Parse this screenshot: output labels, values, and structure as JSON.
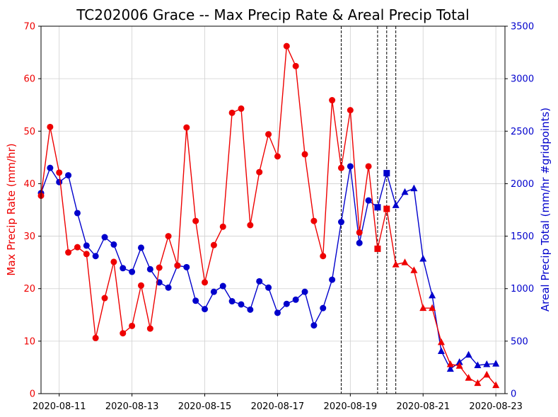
{
  "chart_data": {
    "type": "line",
    "title": "TC202006 Grace -- Max Precip Rate & Areal Precip Total",
    "xlabel": "",
    "ylabel_left": "Max Precip Rate (mm/hr)",
    "ylabel_right": "Areal Precip Total (mm/hr #gridpoints)",
    "xlim": [
      "2020-08-10 12:00",
      "2020-08-23 06:00"
    ],
    "ylim_left": [
      0,
      70
    ],
    "ylim_right": [
      0,
      3500
    ],
    "x_tick_labels": [
      "2020-08-11",
      "2020-08-13",
      "2020-08-15",
      "2020-08-17",
      "2020-08-19",
      "2020-08-21",
      "2020-08-23"
    ],
    "y_left_tick_labels": [
      "0",
      "10",
      "20",
      "30",
      "40",
      "50",
      "60",
      "70"
    ],
    "y_right_tick_labels": [
      "0",
      "500",
      "1000",
      "1500",
      "2000",
      "2500",
      "3000",
      "3500"
    ],
    "grid": true,
    "colors": {
      "left_series": "#ee0000",
      "right_series": "#0000cc",
      "vlines": "#000000"
    },
    "vlines": [
      "2020-08-18 18:00",
      "2020-08-19 18:00",
      "2020-08-20 00:00",
      "2020-08-20 06:00"
    ],
    "x": [
      "2020-08-10 12:00",
      "2020-08-10 18:00",
      "2020-08-11 00:00",
      "2020-08-11 06:00",
      "2020-08-11 12:00",
      "2020-08-11 18:00",
      "2020-08-12 00:00",
      "2020-08-12 06:00",
      "2020-08-12 12:00",
      "2020-08-12 18:00",
      "2020-08-13 00:00",
      "2020-08-13 06:00",
      "2020-08-13 12:00",
      "2020-08-13 18:00",
      "2020-08-14 00:00",
      "2020-08-14 06:00",
      "2020-08-14 12:00",
      "2020-08-14 18:00",
      "2020-08-15 00:00",
      "2020-08-15 06:00",
      "2020-08-15 12:00",
      "2020-08-15 18:00",
      "2020-08-16 00:00",
      "2020-08-16 06:00",
      "2020-08-16 12:00",
      "2020-08-16 18:00",
      "2020-08-17 00:00",
      "2020-08-17 06:00",
      "2020-08-17 12:00",
      "2020-08-17 18:00",
      "2020-08-18 00:00",
      "2020-08-18 06:00",
      "2020-08-18 12:00",
      "2020-08-18 18:00",
      "2020-08-19 00:00",
      "2020-08-19 06:00",
      "2020-08-19 12:00",
      "2020-08-19 18:00",
      "2020-08-20 00:00",
      "2020-08-20 06:00",
      "2020-08-20 12:00",
      "2020-08-20 18:00",
      "2020-08-21 00:00",
      "2020-08-21 06:00",
      "2020-08-21 12:00",
      "2020-08-21 18:00",
      "2020-08-22 00:00",
      "2020-08-22 06:00",
      "2020-08-22 12:00",
      "2020-08-22 18:00",
      "2020-08-23 00:00"
    ],
    "markers": [
      "circle",
      "circle",
      "circle",
      "circle",
      "circle",
      "circle",
      "circle",
      "circle",
      "circle",
      "circle",
      "circle",
      "circle",
      "circle",
      "circle",
      "circle",
      "circle",
      "circle",
      "circle",
      "circle",
      "circle",
      "circle",
      "circle",
      "circle",
      "circle",
      "circle",
      "circle",
      "circle",
      "circle",
      "circle",
      "circle",
      "circle",
      "circle",
      "circle",
      "circle",
      "circle",
      "circle",
      "circle",
      "square",
      "square",
      "triangle",
      "triangle",
      "triangle",
      "triangle",
      "triangle",
      "triangle",
      "triangle",
      "triangle",
      "triangle",
      "triangle",
      "triangle",
      "triangle"
    ],
    "series": [
      {
        "axis": "left",
        "values": [
          37.7,
          50.8,
          42.1,
          26.9,
          27.9,
          26.6,
          10.6,
          18.2,
          25.1,
          11.5,
          12.9,
          20.6,
          12.4,
          24.0,
          30.0,
          24.4,
          50.7,
          32.9,
          21.2,
          28.3,
          31.8,
          53.5,
          54.3,
          32.1,
          42.2,
          49.4,
          45.2,
          66.2,
          62.4,
          45.6,
          32.9,
          26.2,
          55.9,
          43.0,
          54.0,
          30.7,
          43.3,
          27.6,
          35.2,
          24.6,
          25.0,
          23.5,
          16.3,
          16.3,
          9.8,
          5.6,
          5.3,
          3.0,
          2.0,
          3.6,
          1.6
        ]
      },
      {
        "axis": "right",
        "values": [
          1910,
          2150,
          2015,
          2080,
          1720,
          1410,
          1310,
          1490,
          1420,
          1195,
          1160,
          1390,
          1185,
          1060,
          1010,
          1220,
          1205,
          885,
          805,
          970,
          1025,
          880,
          850,
          800,
          1070,
          1010,
          770,
          855,
          895,
          970,
          650,
          815,
          1085,
          1635,
          2165,
          1435,
          1840,
          1775,
          2100,
          1795,
          1920,
          1955,
          1285,
          935,
          405,
          235,
          300,
          370,
          270,
          280,
          285
        ]
      }
    ]
  }
}
